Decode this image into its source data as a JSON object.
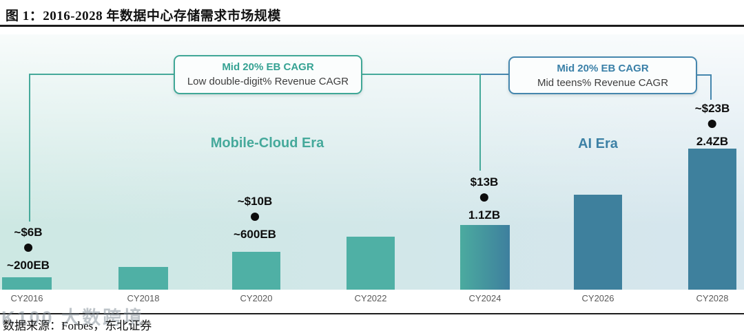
{
  "figure": {
    "title": "图 1：2016-2028 年数据中心存储需求市场规模",
    "source_note": "数据来源：Forbes，东北证券",
    "watermark": "K100 大数跨境"
  },
  "chart_data": {
    "type": "bar",
    "title": "2016-2028 年数据中心存储需求市场规模",
    "categories": [
      "CY2016",
      "CY2018",
      "CY2020",
      "CY2022",
      "CY2024",
      "CY2026",
      "CY2028"
    ],
    "unit": "EB",
    "values_eb": [
      210,
      390,
      640,
      900,
      1100,
      1620,
      2400
    ],
    "ylim": [
      0,
      2400
    ],
    "grid": "off",
    "bar_era": [
      "mobile",
      "mobile",
      "mobile",
      "mobile",
      "transition",
      "ai",
      "ai"
    ],
    "eras": {
      "mobile_cloud": {
        "label": "Mobile-Cloud Era"
      },
      "ai": {
        "label": "AI Era"
      }
    },
    "callouts": {
      "left": {
        "line1": "Mid 20% EB CAGR",
        "line2": "Low double-digit% Revenue CAGR"
      },
      "right": {
        "line1": "Mid 20% EB CAGR",
        "line2": "Mid teens% Revenue CAGR"
      }
    },
    "annotations": [
      {
        "category": "CY2016",
        "revenue": "~$6B",
        "capacity": "~200EB"
      },
      {
        "category": "CY2020",
        "revenue": "~$10B",
        "capacity": "~600EB"
      },
      {
        "category": "CY2024",
        "revenue": "$13B",
        "capacity": "1.1ZB"
      },
      {
        "category": "CY2028",
        "revenue": "~$23B",
        "capacity": "2.4ZB"
      }
    ],
    "colors": {
      "bar_teal": "#4fb0a5",
      "bar_blue": "#3e809d",
      "bar_transition_left": "#4bab9f",
      "bar_transition_right": "#3e7f9e",
      "accent_teal": "#3fa796",
      "accent_blue": "#4586ad",
      "era_teal_text": "#45a99b",
      "era_blue_text": "#3c80a5",
      "axis_label": "#595959"
    }
  }
}
